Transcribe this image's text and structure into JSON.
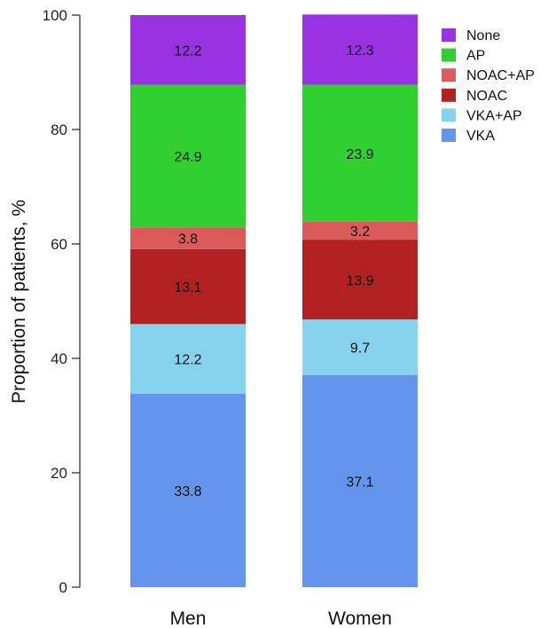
{
  "chart_data": {
    "type": "bar",
    "stacked": true,
    "categories": [
      "Men",
      "Women"
    ],
    "series": [
      {
        "name": "VKA",
        "color": "#6495ed",
        "values": [
          33.8,
          37.1
        ]
      },
      {
        "name": "VKA+AP",
        "color": "#87d3ee",
        "values": [
          12.2,
          9.7
        ]
      },
      {
        "name": "NOAC",
        "color": "#b22222",
        "values": [
          13.1,
          13.9
        ]
      },
      {
        "name": "NOAC+AP",
        "color": "#db5a5a",
        "values": [
          3.8,
          3.2
        ]
      },
      {
        "name": "AP",
        "color": "#2fd02f",
        "values": [
          24.9,
          23.9
        ]
      },
      {
        "name": "None",
        "color": "#9932e0",
        "values": [
          12.2,
          12.3
        ]
      }
    ],
    "ylabel": "Proportion of patients, %",
    "ylim": [
      0,
      100
    ],
    "yticks": [
      0,
      20,
      40,
      60,
      80,
      100
    ],
    "legend_position": "top-right",
    "legend_order": [
      "None",
      "AP",
      "NOAC+AP",
      "NOAC",
      "VKA+AP",
      "VKA"
    ],
    "grid": false
  }
}
